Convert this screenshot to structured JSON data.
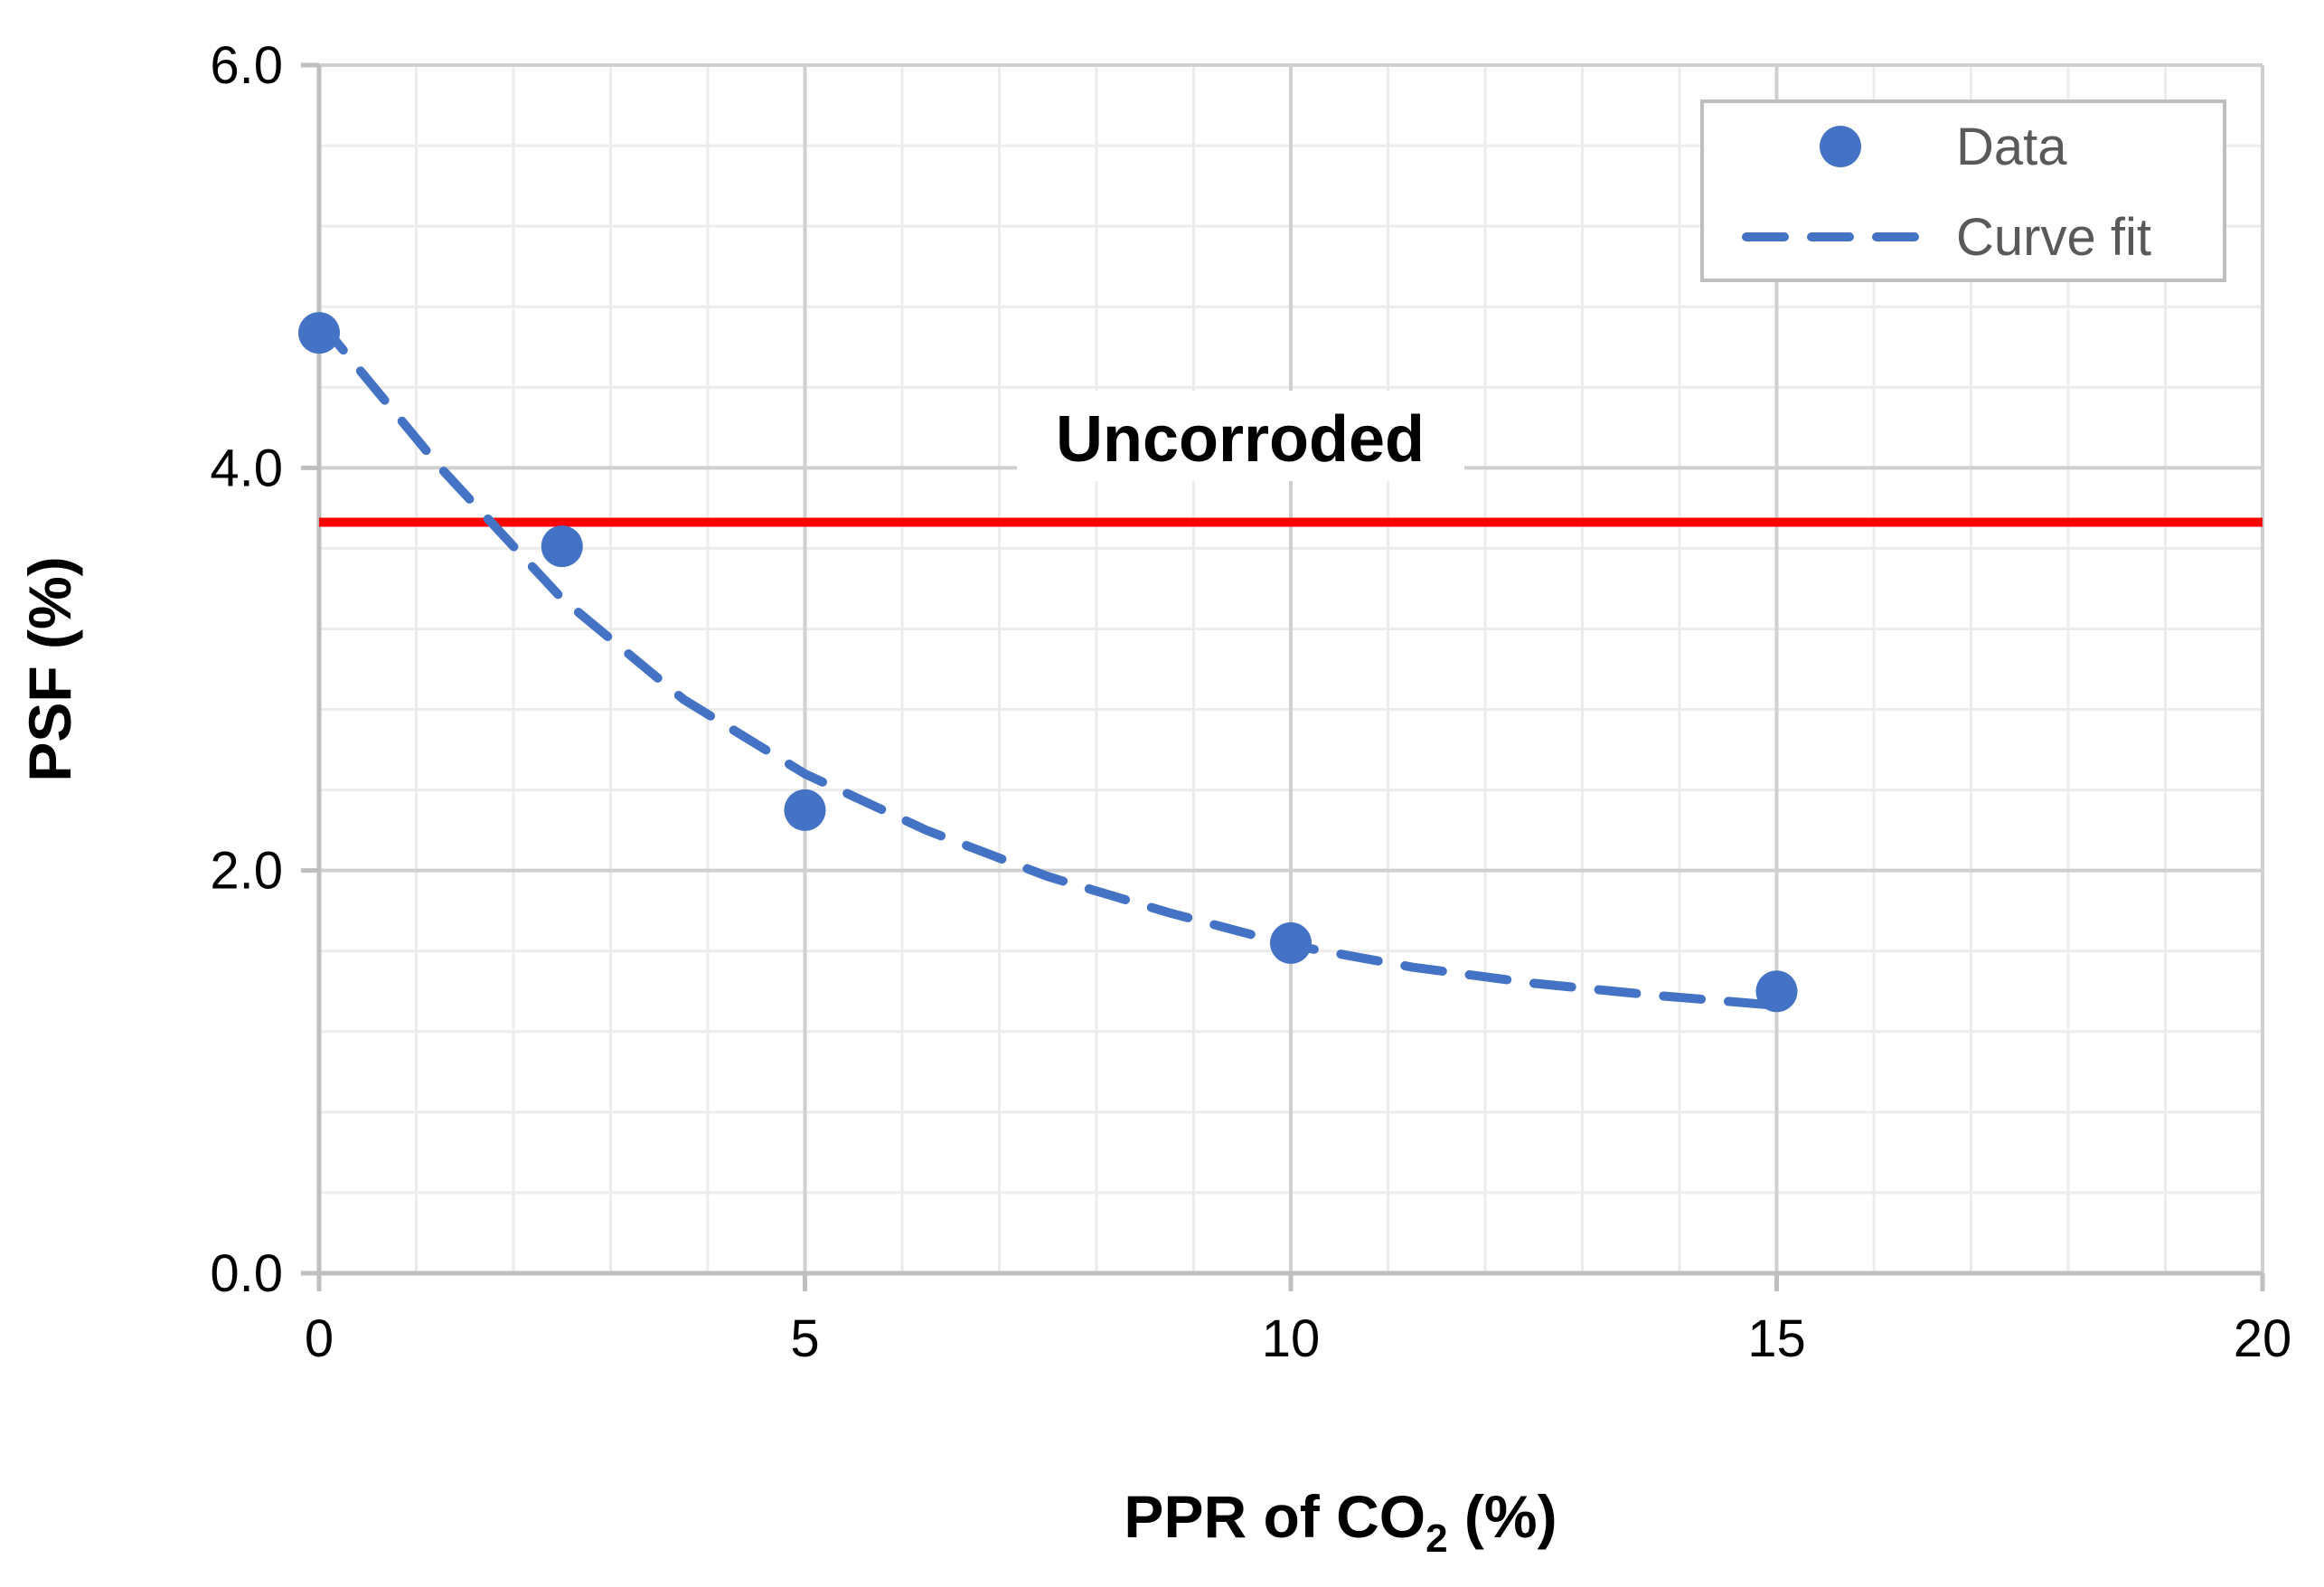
{
  "chart_data": {
    "type": "scatter",
    "title": "",
    "xlabel": {
      "main": "PPR of CO",
      "subscript": "2",
      "suffix": " (%)"
    },
    "ylabel": "PSF (%)",
    "xlim": [
      0,
      20
    ],
    "ylim": [
      0,
      6
    ],
    "x_ticks": [
      0,
      5,
      10,
      15,
      20
    ],
    "x_tick_labels": [
      "0",
      "5",
      "10",
      "15",
      "20"
    ],
    "y_ticks": [
      0,
      2,
      4,
      6
    ],
    "y_tick_labels": [
      "0.0",
      "2.0",
      "4.0",
      "6.0"
    ],
    "x_minor_step": 1,
    "y_minor_step": 0.4,
    "grid": true,
    "legend_position": "top-right",
    "series": [
      {
        "name": "Data",
        "kind": "markers",
        "color": "#4472C4",
        "x": [
          0,
          2.5,
          5,
          10,
          15
        ],
        "y": [
          4.67,
          3.61,
          2.3,
          1.64,
          1.4
        ]
      },
      {
        "name": "Curve fit",
        "kind": "dashed-line",
        "color": "#4472C4",
        "x": [
          0,
          1.25,
          2.5,
          3.75,
          5,
          6.25,
          7.5,
          8.75,
          10,
          11.25,
          12.5,
          13.75,
          15
        ],
        "y": [
          4.73,
          4.0,
          3.35,
          2.85,
          2.48,
          2.2,
          1.97,
          1.79,
          1.63,
          1.52,
          1.44,
          1.38,
          1.33
        ]
      }
    ],
    "reference_line": {
      "label": "Uncorroded",
      "y": 3.73,
      "color": "#FF0000"
    }
  }
}
